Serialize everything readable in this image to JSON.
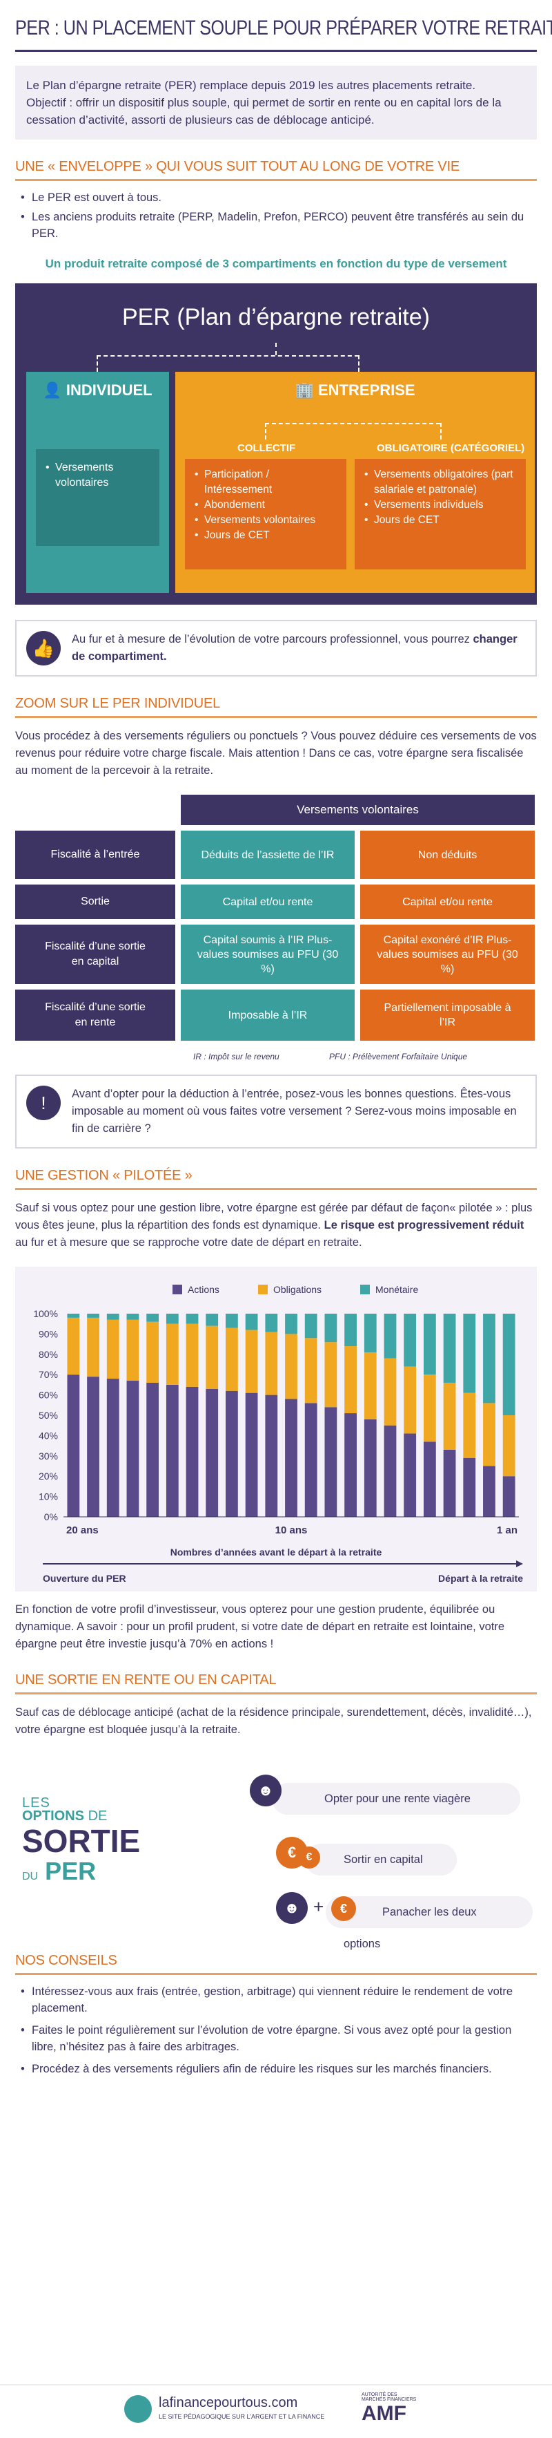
{
  "title": "PER : UN PLACEMENT SOUPLE POUR PRÉPARER VOTRE RETRAITE",
  "intro": {
    "text1": "Le Plan d’épargne retraite (PER) remplace depuis 2019 les autres placements retraite.",
    "text2": "Objectif : offrir un dispositif plus souple, qui permet de sortir en rente ou en capital lors de la cessation d’activité, assorti de plusieurs cas de déblocage anticipé."
  },
  "section1": {
    "title": "UNE « ENVELOPPE » QUI VOUS SUIT TOUT AU LONG DE VOTRE VIE",
    "bullets": [
      "Le PER est ouvert à tous.",
      "Les anciens produits retraite (PERP, Madelin, Prefon, PERCO) peuvent être transférés au sein du PER."
    ],
    "subhead": "Un produit retraite composé de 3 compartiments en fonction du type de versement",
    "per_title": "PER (Plan d’épargne retraite)",
    "individuel": {
      "label": "INDIVIDUEL",
      "items": [
        "Versements volontaires"
      ]
    },
    "entreprise": {
      "label": "ENTREPRISE"
    },
    "collectif": {
      "label": "COLLECTIF",
      "items": [
        "Participation / Intéressement",
        "Abondement",
        "Versements volontaires",
        "Jours de CET"
      ]
    },
    "obligatoire": {
      "label": "OBLIGATOIRE (CATÉGORIEL)",
      "items": [
        "Versements obligatoires (part salariale et patronale)",
        "Versements individuels",
        "Jours de CET"
      ]
    },
    "callout1": "Au fur et à mesure de l’évolution de votre parcours professionnel, vous pourrez",
    "callout1_bold": "changer de compartiment."
  },
  "section2": {
    "title": "ZOOM SUR LE PER INDIVIDUEL",
    "para": "Vous procédez à des versements réguliers ou ponctuels ? Vous pouvez déduire ces versements de vos revenus pour réduire votre charge fiscale. Mais attention ! Dans ce cas, votre épargne sera fiscalisée au moment de la percevoir à la retraite.",
    "table_header": "Versements volontaires",
    "rows": [
      {
        "label": "Fiscalité à l’entrée",
        "a": "Déduits de l’assiette de l’IR",
        "b": "Non déduits"
      },
      {
        "label": "Sortie",
        "a": "Capital et/ou rente",
        "b": "Capital et/ou rente"
      },
      {
        "label": "Fiscalité d’une sortie en capital",
        "a": "Capital soumis à l’IR Plus-values soumises au PFU (30 %)",
        "b": "Capital exonéré d’IR Plus-values soumises au PFU (30 %)"
      },
      {
        "label": "Fiscalité d’une sortie en rente",
        "a": "Imposable à l’IR",
        "b": "Partiellement imposable à l’IR"
      }
    ],
    "note1": "IR : Impôt sur le revenu",
    "note2": "PFU : Prélèvement Forfaitaire Unique",
    "callout2": "Avant d’opter pour la déduction à l’entrée, posez-vous les bonnes questions. Êtes-vous imposable au moment où vous faites votre versement ? Serez-vous moins imposable en fin de carrière ?"
  },
  "section3": {
    "title": "UNE GESTION « PILOTÉE »",
    "para1": "Sauf si vous optez pour une gestion libre, votre épargne est gérée par défaut de façon« pilotée » : plus vous êtes jeune, plus la répartition des fonds est dynamique.",
    "para1_bold": "Le risque est progressivement réduit",
    "para1_end": "au fur et à mesure que se rapproche votre date de départ en retraite.",
    "para2": "En fonction de votre profil d’investisseur, vous opterez pour une gestion prudente, équilibrée ou dynamique. A savoir : pour un profil prudent, si votre date de départ en retraite est lointaine, votre épargne peut être investie jusqu’à 70% en actions !"
  },
  "chart_data": {
    "type": "bar",
    "stacked": true,
    "legend": [
      "Actions",
      "Obligations",
      "Monétaire"
    ],
    "colors": {
      "Actions": "#5a4a8a",
      "Obligations": "#f0a820",
      "Monétaire": "#3fa6a8"
    },
    "x_ticks": [
      "20 ans",
      "10 ans",
      "1 an"
    ],
    "xlabel": "Nombres d’années avant le départ à la retraite",
    "left_caption": "Ouverture du PER",
    "right_caption": "Départ à la retraite",
    "y_ticks": [
      "0%",
      "10%",
      "20%",
      "30%",
      "40%",
      "50%",
      "60%",
      "70%",
      "80%",
      "90%",
      "100%"
    ],
    "ylim": [
      0,
      100
    ],
    "series": [
      {
        "name": "Actions",
        "values": [
          70,
          69,
          68,
          67,
          66,
          65,
          64,
          63,
          62,
          61,
          60,
          58,
          56,
          54,
          51,
          48,
          45,
          41,
          37,
          33,
          29,
          25,
          20
        ]
      },
      {
        "name": "Obligations",
        "values": [
          28,
          29,
          29,
          30,
          30,
          30,
          31,
          31,
          31,
          31,
          31,
          32,
          32,
          32,
          33,
          33,
          33,
          33,
          33,
          33,
          32,
          31,
          30
        ]
      },
      {
        "name": "Monétaire",
        "values": [
          2,
          2,
          3,
          3,
          4,
          5,
          5,
          6,
          7,
          8,
          9,
          10,
          12,
          14,
          16,
          19,
          22,
          26,
          30,
          34,
          39,
          44,
          50
        ]
      }
    ]
  },
  "section4": {
    "title": "UNE SORTIE EN RENTE OU EN CAPITAL",
    "para": "Sauf cas de déblocage anticipé (achat de la résidence principale, surendettement, décès, invalidité…), votre épargne est bloquée jusqu’à la retraite.",
    "logo_les": "LES",
    "logo_options": "OPTIONS",
    "logo_de": "DE",
    "logo_sortie": "SORTIE",
    "logo_du": "DU",
    "logo_per": "PER",
    "options": [
      "Opter pour une rente viagère",
      "Sortir en capital",
      "Panacher les deux options"
    ],
    "euro": "€"
  },
  "section5": {
    "title": "NOS CONSEILS",
    "items": [
      "Intéressez-vous aux frais (entrée, gestion, arbitrage) qui viennent réduire le rendement de votre placement.",
      "Faites le point régulièrement sur l’évolution de votre épargne. Si vous avez opté pour la gestion libre, n’hésitez pas à faire des arbitrages.",
      "Procédez à des versements réguliers afin de réduire les risques sur les marchés financiers."
    ]
  },
  "footer": {
    "brand": "lafinancepourtous.com",
    "tagline": "LE SITE PÉDAGOGIQUE SUR L’ARGENT ET LA FINANCE",
    "amf": "AMF",
    "amf_small": "AUTORITÉ DES MARCHÉS FINANCIERS"
  }
}
